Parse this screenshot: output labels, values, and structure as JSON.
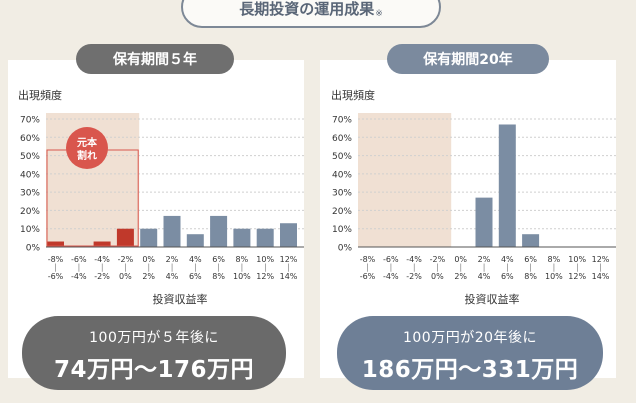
{
  "header": {
    "title": "長期投資の運用成果",
    "note_mark": "※"
  },
  "panels": [
    {
      "period_label": "保有期間５年",
      "y_axis_title": "出現頻度",
      "x_axis_title": "投資収益率",
      "loss_badge": "元本割れ",
      "result_line1": "100万円が５年後に",
      "result_line2": "74万円〜176万円"
    },
    {
      "period_label": "保有期間20年",
      "y_axis_title": "出現頻度",
      "x_axis_title": "投資収益率",
      "result_line1": "100万円が20年後に",
      "result_line2": "186万円〜331万円"
    }
  ],
  "colors": {
    "loss_bar": "#c0392b",
    "gain_bar": "#7b8da3",
    "loss_zone": "#f0e0d3",
    "badge": "#d9564d"
  },
  "chart_data": [
    {
      "type": "bar",
      "title": "保有期間５年",
      "xlabel": "投資収益率",
      "ylabel": "出現頻度",
      "ylim": [
        0,
        70
      ],
      "yticks": [
        "0%",
        "10%",
        "20%",
        "30%",
        "40%",
        "50%",
        "60%",
        "70%"
      ],
      "categories_top": [
        "-8%",
        "-6%",
        "-4%",
        "-2%",
        "0%",
        "2%",
        "4%",
        "6%",
        "8%",
        "10%",
        "12%"
      ],
      "categories_bottom": [
        "-6%",
        "-4%",
        "-2%",
        "0%",
        "2%",
        "4%",
        "6%",
        "8%",
        "10%",
        "12%",
        "14%"
      ],
      "values": [
        3,
        0,
        3,
        10,
        10,
        17,
        7,
        17,
        10,
        10,
        13
      ],
      "loss_bins": 4
    },
    {
      "type": "bar",
      "title": "保有期間20年",
      "xlabel": "投資収益率",
      "ylabel": "出現頻度",
      "ylim": [
        0,
        70
      ],
      "yticks": [
        "0%",
        "10%",
        "20%",
        "30%",
        "40%",
        "50%",
        "60%",
        "70%"
      ],
      "categories_top": [
        "-8%",
        "-6%",
        "-4%",
        "-2%",
        "0%",
        "2%",
        "4%",
        "6%",
        "8%",
        "10%",
        "12%"
      ],
      "categories_bottom": [
        "-6%",
        "-4%",
        "-2%",
        "0%",
        "2%",
        "4%",
        "6%",
        "8%",
        "10%",
        "12%",
        "14%"
      ],
      "values": [
        0,
        0,
        0,
        0,
        0,
        27,
        67,
        7,
        0,
        0,
        0
      ],
      "loss_bins": 4
    }
  ]
}
